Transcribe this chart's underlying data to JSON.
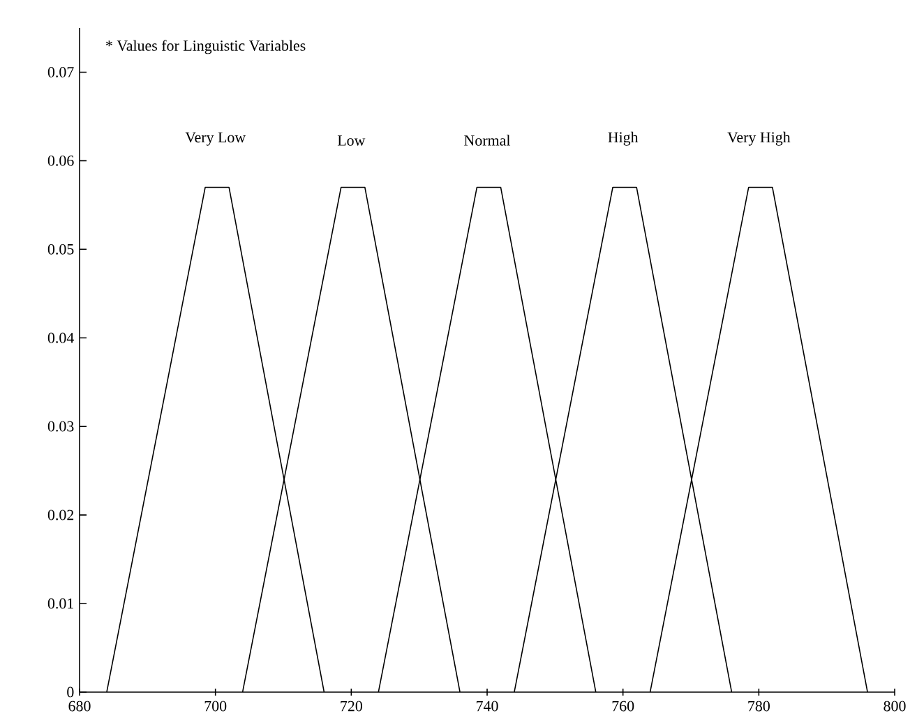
{
  "chart_data": {
    "type": "line",
    "annotations": [
      "* Values for Linguistic Variables"
    ],
    "xlim": [
      680,
      800
    ],
    "xticks": [
      680,
      700,
      720,
      740,
      760,
      780,
      800
    ],
    "ylim": [
      0,
      0.075
    ],
    "yticks": [
      0,
      0.01,
      0.02,
      0.03,
      0.04,
      0.05,
      0.06,
      0.07
    ],
    "series": [
      {
        "name": "Very Low",
        "color": "#000000",
        "x": [
          684,
          698.5,
          702,
          716
        ],
        "values": [
          0,
          0.057,
          0.057,
          0
        ]
      },
      {
        "name": "Low",
        "color": "#000000",
        "x": [
          704,
          718.5,
          722,
          736
        ],
        "values": [
          0,
          0.057,
          0.057,
          0
        ]
      },
      {
        "name": "Normal",
        "color": "#000000",
        "x": [
          724,
          738.5,
          742,
          756
        ],
        "values": [
          0,
          0.057,
          0.057,
          0
        ]
      },
      {
        "name": "High",
        "color": "#000000",
        "x": [
          744,
          758.5,
          762,
          776
        ],
        "values": [
          0,
          0.057,
          0.057,
          0
        ]
      },
      {
        "name": "Very High",
        "color": "#000000",
        "x": [
          764,
          778.5,
          782,
          796
        ],
        "values": [
          0,
          0.057,
          0.057,
          0
        ]
      }
    ]
  }
}
